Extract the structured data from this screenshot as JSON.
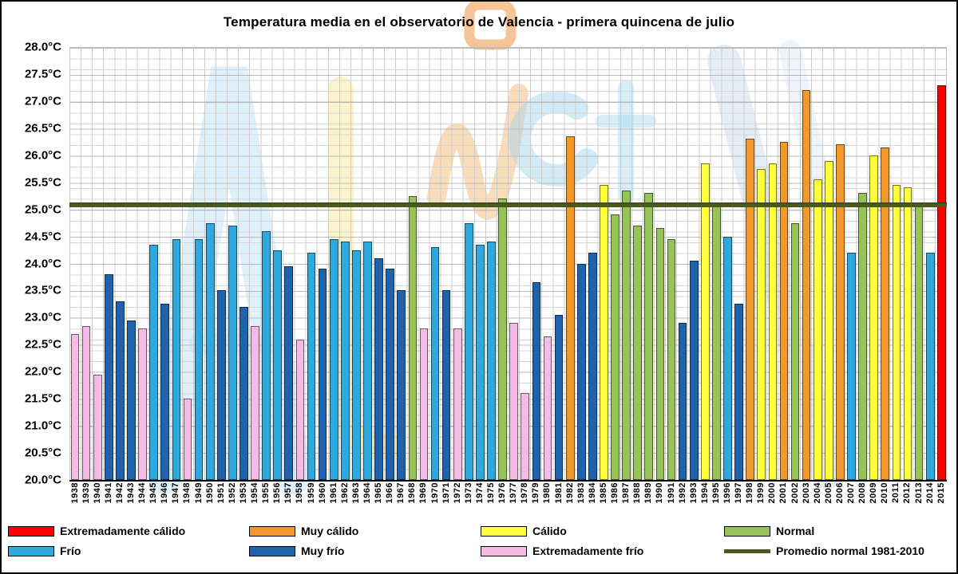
{
  "title": "Temperatura media en el observatorio de Valencia - primera quincena de julio",
  "chart_data": {
    "type": "bar",
    "title": "Temperatura media en el observatorio de Valencia - primera quincena de julio",
    "ylim": [
      20.0,
      28.0
    ],
    "ytick_step": 0.5,
    "grid": true,
    "legend_position": "bottom",
    "ytick_labels": [
      "20.0°C",
      "20.5°C",
      "21.0°C",
      "21.5°C",
      "22.0°C",
      "22.5°C",
      "23.0°C",
      "23.5°C",
      "24.0°C",
      "24.5°C",
      "25.0°C",
      "25.5°C",
      "26.0°C",
      "26.5°C",
      "27.0°C",
      "27.5°C",
      "28.0°C"
    ],
    "x": [
      "1938",
      "1939",
      "1940",
      "1941",
      "1942",
      "1943",
      "1944",
      "1945",
      "1946",
      "1947",
      "1948",
      "1949",
      "1950",
      "1951",
      "1952",
      "1953",
      "1954",
      "1955",
      "1956",
      "1957",
      "1958",
      "1959",
      "1960",
      "1961",
      "1962",
      "1963",
      "1964",
      "1965",
      "1966",
      "1967",
      "1968",
      "1969",
      "1970",
      "1971",
      "1972",
      "1973",
      "1974",
      "1975",
      "1976",
      "1977",
      "1978",
      "1979",
      "1980",
      "1981",
      "1982",
      "1983",
      "1984",
      "1985",
      "1986",
      "1987",
      "1988",
      "1989",
      "1990",
      "1991",
      "1992",
      "1993",
      "1994",
      "1995",
      "1996",
      "1997",
      "1998",
      "1999",
      "2000",
      "2001",
      "2002",
      "2003",
      "2004",
      "2005",
      "2006",
      "2007",
      "2008",
      "2009",
      "2010",
      "2011",
      "2012",
      "2013",
      "2014",
      "2015"
    ],
    "values": [
      22.7,
      22.85,
      21.95,
      23.8,
      23.3,
      22.95,
      22.8,
      24.35,
      23.25,
      24.45,
      21.5,
      24.45,
      24.75,
      23.5,
      24.7,
      23.2,
      22.85,
      24.6,
      24.25,
      23.95,
      22.6,
      24.2,
      23.9,
      24.45,
      24.4,
      24.25,
      24.4,
      24.1,
      23.9,
      23.5,
      25.25,
      22.8,
      24.3,
      23.5,
      22.8,
      24.75,
      24.35,
      24.4,
      25.2,
      22.9,
      21.6,
      23.65,
      22.65,
      23.05,
      26.35,
      24.0,
      24.2,
      25.45,
      24.9,
      25.35,
      24.7,
      25.3,
      24.65,
      24.45,
      22.9,
      24.05,
      25.85,
      25.05,
      24.5,
      23.25,
      26.3,
      25.75,
      25.85,
      26.25,
      24.75,
      27.2,
      25.55,
      25.9,
      26.2,
      24.2,
      25.3,
      26.0,
      26.15,
      25.45,
      25.4,
      25.05,
      24.2,
      27.3
    ],
    "series_category": [
      "ext_frio",
      "ext_frio",
      "ext_frio",
      "muy_frio",
      "muy_frio",
      "muy_frio",
      "ext_frio",
      "frio",
      "muy_frio",
      "frio",
      "ext_frio",
      "frio",
      "frio",
      "muy_frio",
      "frio",
      "muy_frio",
      "ext_frio",
      "frio",
      "frio",
      "muy_frio",
      "ext_frio",
      "frio",
      "muy_frio",
      "frio",
      "frio",
      "frio",
      "frio",
      "muy_frio",
      "muy_frio",
      "muy_frio",
      "normal",
      "ext_frio",
      "frio",
      "muy_frio",
      "ext_frio",
      "frio",
      "frio",
      "frio",
      "normal",
      "ext_frio",
      "ext_frio",
      "muy_frio",
      "ext_frio",
      "muy_frio",
      "muy_calido",
      "muy_frio",
      "muy_frio",
      "calido",
      "normal",
      "normal",
      "normal",
      "normal",
      "normal",
      "normal",
      "muy_frio",
      "muy_frio",
      "calido",
      "normal",
      "frio",
      "muy_frio",
      "muy_calido",
      "calido",
      "calido",
      "muy_calido",
      "normal",
      "muy_calido",
      "calido",
      "calido",
      "muy_calido",
      "frio",
      "normal",
      "calido",
      "muy_calido",
      "calido",
      "calido",
      "normal",
      "frio",
      "ext_calido"
    ],
    "category_colors": {
      "ext_calido": "#FE0000",
      "muy_calido": "#F0992C",
      "calido": "#FFFF3B",
      "normal": "#97C35A",
      "frio": "#2FA8DD",
      "muy_frio": "#1F63AD",
      "ext_frio": "#F4BCE4"
    },
    "average_line": {
      "value": 25.1,
      "color": "#4A5A1F",
      "label": "Promedio normal 1981-2010"
    }
  },
  "legend": {
    "items": [
      {
        "label": "Extremadamente cálido",
        "color": "#FE0000",
        "shape": "box"
      },
      {
        "label": "Muy cálido",
        "color": "#F0992C",
        "shape": "box"
      },
      {
        "label": "Cálido",
        "color": "#FFFF3B",
        "shape": "box"
      },
      {
        "label": "Normal",
        "color": "#97C35A",
        "shape": "box"
      },
      {
        "label": "Frío",
        "color": "#2FA8DD",
        "shape": "box"
      },
      {
        "label": "Muy frío",
        "color": "#1F63AD",
        "shape": "box"
      },
      {
        "label": "Extremadamente frío",
        "color": "#F4BCE4",
        "shape": "box"
      },
      {
        "label": "Promedio normal 1981-2010",
        "color": "#4A5A1F",
        "shape": "line"
      }
    ]
  }
}
